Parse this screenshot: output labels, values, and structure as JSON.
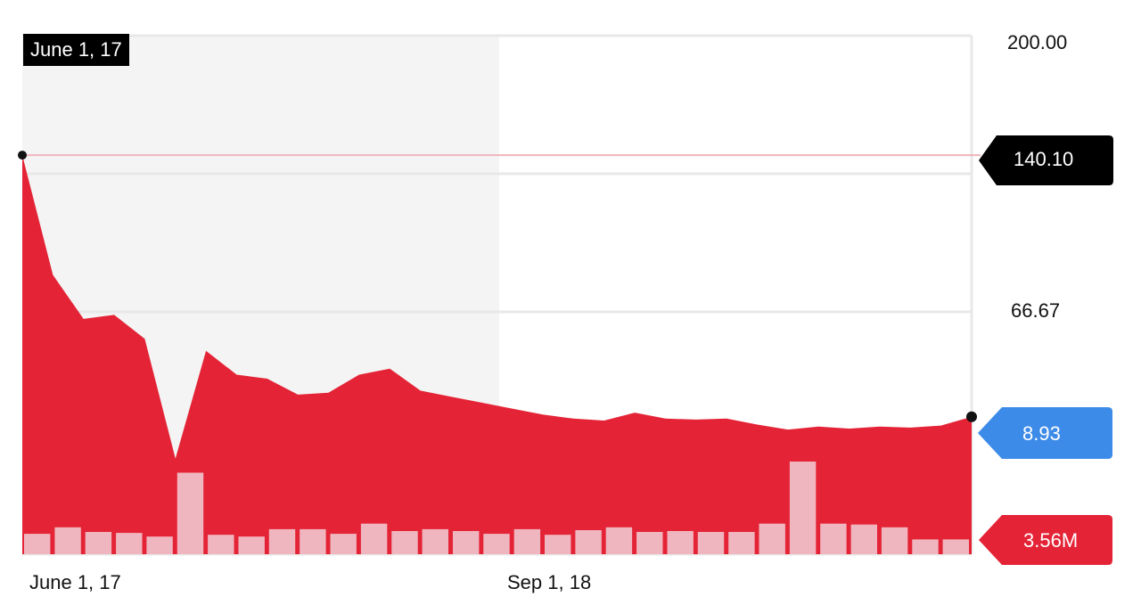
{
  "hover": {
    "label": "June 1, 17"
  },
  "chart_data": {
    "type": "area",
    "x_tick_labels": [
      "June 1, 17",
      "Sep 1, 18"
    ],
    "y_tick_labels": [
      "200.00",
      "66.67"
    ],
    "price": [
      140.1,
      80,
      58,
      60,
      48,
      -12,
      42,
      30,
      28,
      20,
      21,
      30,
      33,
      22,
      19,
      16,
      13,
      10,
      8,
      7,
      11,
      8,
      7.5,
      8,
      5,
      2.5,
      4,
      3,
      4,
      3.5,
      4.5,
      8.93
    ],
    "volume_relative": [
      0.22,
      0.29,
      0.24,
      0.23,
      0.19,
      0.88,
      0.21,
      0.19,
      0.27,
      0.27,
      0.22,
      0.33,
      0.25,
      0.27,
      0.25,
      0.22,
      0.27,
      0.21,
      0.26,
      0.29,
      0.24,
      0.25,
      0.24,
      0.24,
      0.33,
      1.0,
      0.33,
      0.32,
      0.29,
      0.16,
      0.16
    ],
    "price_range": [
      -60,
      200
    ],
    "shaded_period": "June 1, 17 - Sep 1, 18",
    "markers": {
      "reference": {
        "value": "140.10",
        "color": "#000000"
      },
      "last_price": {
        "value": "8.93",
        "color": "#3d8be8"
      },
      "volume": {
        "value": "3.56M",
        "color": "#e42436"
      }
    },
    "colors": {
      "area_fill": "#e42436",
      "volume_bars": "#f0b6bf",
      "shaded_region": "#f4f4f4",
      "gridlines": "#e8e8e8",
      "reference_line": "#f0b4bc"
    }
  }
}
